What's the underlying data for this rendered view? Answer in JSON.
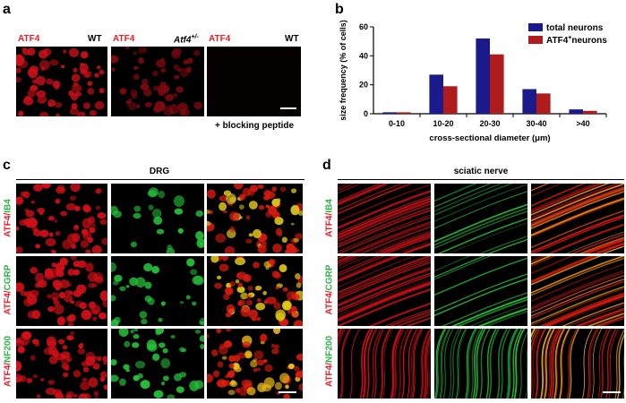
{
  "panels": {
    "a": {
      "letter": "a",
      "labels": [
        {
          "left": "ATF4",
          "right": "WT"
        },
        {
          "left": "ATF4",
          "right": "Atf4",
          "right_sup": "+/-"
        },
        {
          "left": "ATF4",
          "right": "WT"
        }
      ],
      "caption": "+ blocking peptide"
    },
    "b": {
      "letter": "b"
    },
    "c": {
      "letter": "c",
      "title": "DRG",
      "rows": [
        {
          "red": "ATF4",
          "sep": "/",
          "green": "IB4"
        },
        {
          "red": "ATF4",
          "sep": "/",
          "green": "CGRP"
        },
        {
          "red": "ATF4",
          "sep": "/",
          "green": "NF200"
        }
      ]
    },
    "d": {
      "letter": "d",
      "title": "sciatic nerve",
      "rows": [
        {
          "red": "ATF4",
          "sep": "/",
          "green": "IB4"
        },
        {
          "red": "ATF4",
          "sep": "/",
          "green": "CGRP"
        },
        {
          "red": "ATF4",
          "sep": "/",
          "green": "NF200"
        }
      ]
    }
  },
  "colors": {
    "red_label": "#e8202a",
    "green_label": "#2db34a",
    "total_neurons": "#1a1a8c",
    "atf4_neurons": "#b01c1c"
  },
  "chart_data": {
    "type": "bar",
    "categories": [
      "0-10",
      "10-20",
      "20-30",
      "30-40",
      ">40"
    ],
    "series": [
      {
        "name": "total neurons",
        "values": [
          1,
          27,
          52,
          17,
          3
        ]
      },
      {
        "name_main": "ATF4",
        "name_sup": "+",
        "name_tail": "neurons",
        "values": [
          1,
          19,
          41,
          14,
          2
        ]
      }
    ],
    "xlabel": "cross-sectional diameter (μm)",
    "ylabel": "size frequency (% of cells)",
    "ylim": [
      0,
      60
    ],
    "yticks": [
      0,
      20,
      40,
      60
    ],
    "legend": "top-right",
    "grid": false
  }
}
